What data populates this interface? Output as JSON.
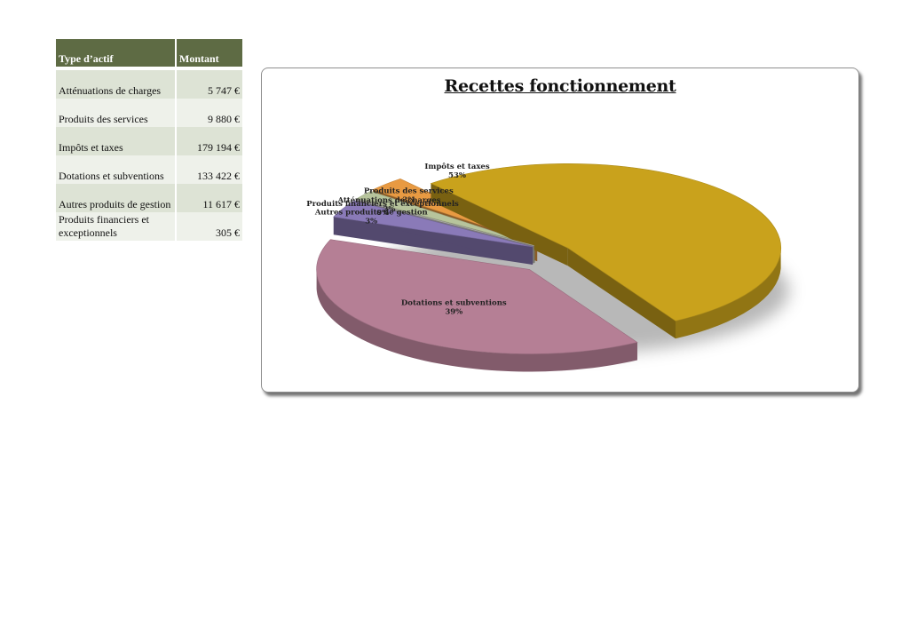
{
  "table": {
    "headers": [
      "Type d’actif",
      "Montant"
    ],
    "rows": [
      {
        "name": "Atténuations de charges",
        "amount": "5 747 €"
      },
      {
        "name": "Produits des services",
        "amount": "9 880 €"
      },
      {
        "name": "Impôts et taxes",
        "amount": "179 194 €"
      },
      {
        "name": "Dotations et subventions",
        "amount": "133 422 €"
      },
      {
        "name": "Autres produits de gestion",
        "amount": "11 617 €"
      },
      {
        "name": "Produits financiers et exceptionnels",
        "amount": "305 €"
      }
    ]
  },
  "chart_data": {
    "type": "pie",
    "title": "Recettes fonctionnement",
    "is_3d": true,
    "exploded": true,
    "legend": "none",
    "categories": [
      "Impôts et taxes",
      "Dotations et subventions",
      "Autres produits de gestion",
      "Produits financiers et exceptionnels",
      "Atténuations de charges",
      "Produits des services"
    ],
    "values": [
      179194,
      133422,
      11617,
      305,
      5747,
      9880
    ],
    "percent_labels": [
      "53%",
      "39%",
      "3%",
      "0%",
      "2%",
      "3%"
    ],
    "colors": [
      "#c9a21c",
      "#b57f95",
      "#8a7ab8",
      "#c9c7c6",
      "#b7c49c",
      "#e89a42"
    ]
  }
}
